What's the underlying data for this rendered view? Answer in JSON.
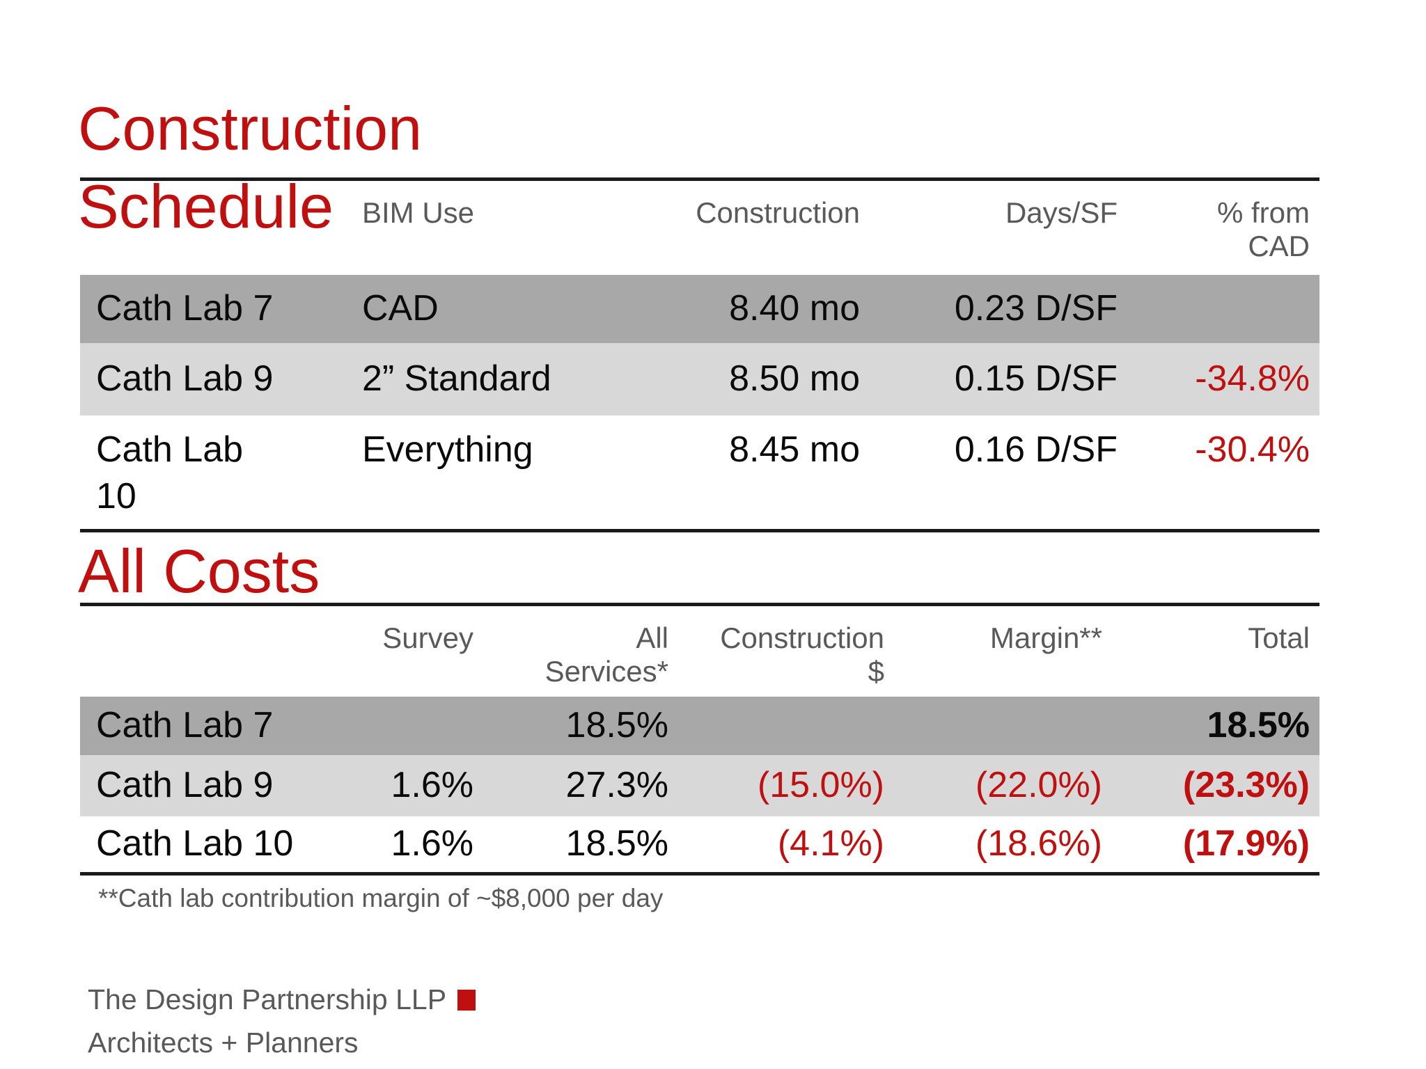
{
  "slide": {
    "title_line1": "Construction",
    "title_line2": "Schedule",
    "section2_title": "All Costs",
    "footnote": "**Cath lab contribution margin of ~$8,000 per day",
    "footer": {
      "line1": "The Design Partnership LLP",
      "line2": "Architects + Planners"
    }
  },
  "colors": {
    "accent_red": "#C00F0F",
    "row_dark": "#A8A8A8",
    "row_light": "#D8D8D8",
    "header_text": "#595959",
    "body_text": "#0A0A0A",
    "border_black": "#1A1A1A"
  },
  "schedule_table": {
    "headers": [
      [
        ""
      ],
      [
        "BIM Use"
      ],
      [
        "Construction"
      ],
      [
        "Days/SF"
      ],
      [
        "% from",
        "CAD"
      ]
    ],
    "rows": [
      [
        "Cath Lab 7",
        "CAD",
        "8.40 mo",
        "0.23 D/SF",
        ""
      ],
      [
        "Cath Lab 9",
        "2” Standard",
        "8.50 mo",
        "0.15 D/SF",
        "-34.8%"
      ],
      [
        "Cath Lab 10",
        "Everything",
        "8.45 mo",
        "0.16 D/SF",
        "-30.4%"
      ]
    ]
  },
  "costs_table": {
    "headers": [
      [
        ""
      ],
      [
        "Survey"
      ],
      [
        "All",
        "Services*"
      ],
      [
        "Construction",
        "$"
      ],
      [
        "Margin**"
      ],
      [
        "Total"
      ]
    ],
    "rows": [
      [
        "Cath Lab 7",
        "",
        "18.5%",
        "",
        "",
        "18.5%"
      ],
      [
        "Cath Lab 9",
        "1.6%",
        "27.3%",
        "(15.0%)",
        "(22.0%)",
        "(23.3%)"
      ],
      [
        "Cath Lab 10",
        "1.6%",
        "18.5%",
        "(4.1%)",
        "(18.6%)",
        "(17.9%)"
      ]
    ]
  }
}
